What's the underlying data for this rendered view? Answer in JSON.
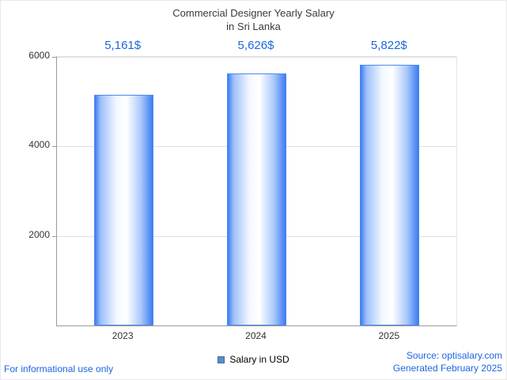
{
  "chart_data": {
    "type": "bar",
    "title": "Commercial Designer Yearly Salary in Sri Lanka",
    "title_lines": [
      "Commercial Designer Yearly Salary",
      "in Sri Lanka"
    ],
    "categories": [
      "2023",
      "2024",
      "2025"
    ],
    "values": [
      5161,
      5626,
      5822
    ],
    "value_labels": [
      "5,161$",
      "5,626$",
      "5,822$"
    ],
    "ylim": [
      0,
      6000
    ],
    "yticks": [
      2000,
      4000,
      6000
    ],
    "ylabel": "",
    "xlabel": "",
    "grid": "horizontal",
    "legend": "Salary in USD",
    "legend_position": "bottom-center"
  },
  "footer": {
    "note": "For informational use only",
    "source": "Source: optisalary.com",
    "generated": "Generated February 2025"
  },
  "colors": {
    "accent_blue": "#1c66e0",
    "bar_blue": "#3b7df2",
    "legend_swatch": "#5b8bc9",
    "grid_gray": "#e0e0e0",
    "axis_gray": "#9b9b9b",
    "title_gray": "#3a3a3a"
  }
}
